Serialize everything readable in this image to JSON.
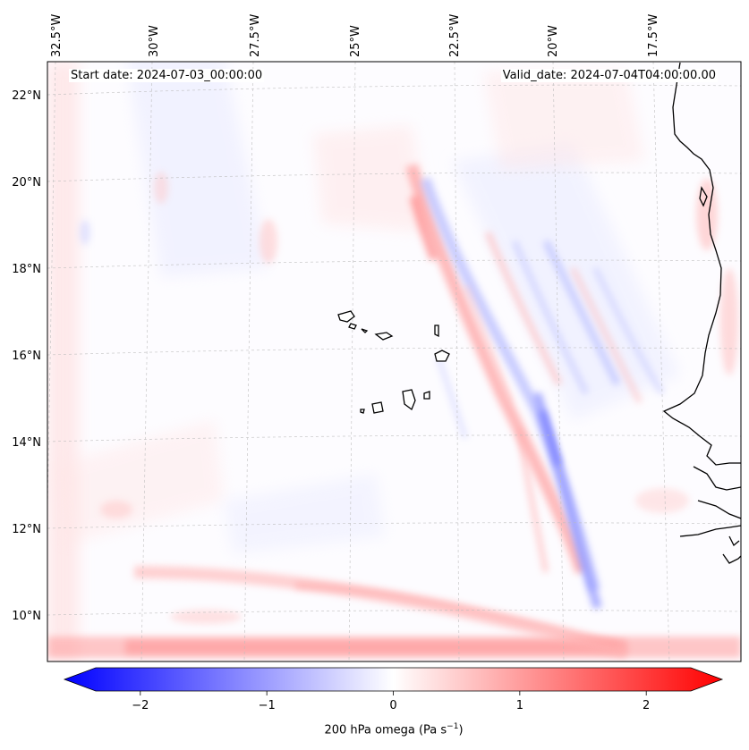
{
  "start_date": "Start date: 2024-07-03_00:00:00",
  "valid_date": "Valid_date: 2024-07-04T04:00:00.00",
  "map": {
    "lon_ticks": [
      "32.5°W",
      "30°W",
      "27.5°W",
      "25°W",
      "22.5°W",
      "20°W",
      "17.5°W"
    ],
    "lat_ticks": [
      "22°N",
      "20°N",
      "18°N",
      "16°N",
      "14°N",
      "12°N",
      "10°N"
    ],
    "variable": "200 hPa omega",
    "unit_base": "(Pa s",
    "unit_exp": "−1",
    "unit_close": ")"
  },
  "colorbar": {
    "ticks": [
      "−2",
      "−1",
      "0",
      "1",
      "2"
    ],
    "min": -2.6,
    "max": 2.6,
    "low_color": "#0000ff",
    "mid_color": "#ffffff",
    "high_color": "#ff0000"
  }
}
